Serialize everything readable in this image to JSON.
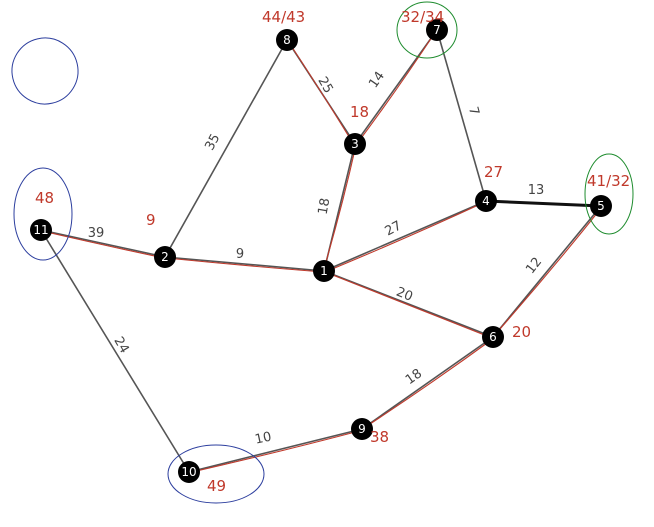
{
  "graph": {
    "nodes": [
      {
        "id": "1",
        "label": "1"
      },
      {
        "id": "2",
        "label": "2"
      },
      {
        "id": "3",
        "label": "3"
      },
      {
        "id": "4",
        "label": "4"
      },
      {
        "id": "5",
        "label": "5"
      },
      {
        "id": "6",
        "label": "6"
      },
      {
        "id": "7",
        "label": "7"
      },
      {
        "id": "8",
        "label": "8"
      },
      {
        "id": "9",
        "label": "9"
      },
      {
        "id": "10",
        "label": "10"
      },
      {
        "id": "11",
        "label": "11"
      }
    ],
    "edges": [
      {
        "from": "11",
        "to": "2",
        "weight": "39",
        "traced": true
      },
      {
        "from": "11",
        "to": "10",
        "weight": "24",
        "traced": false
      },
      {
        "from": "2",
        "to": "8",
        "weight": "35",
        "traced": false
      },
      {
        "from": "2",
        "to": "1",
        "weight": "9",
        "traced": true
      },
      {
        "from": "8",
        "to": "3",
        "weight": "25",
        "traced": true
      },
      {
        "from": "3",
        "to": "7",
        "weight": "14",
        "traced": true
      },
      {
        "from": "7",
        "to": "4",
        "weight": "7",
        "traced": false
      },
      {
        "from": "3",
        "to": "1",
        "weight": "18",
        "traced": true
      },
      {
        "from": "1",
        "to": "4",
        "weight": "27",
        "traced": true
      },
      {
        "from": "4",
        "to": "5",
        "weight": "13",
        "traced": false,
        "bold": true
      },
      {
        "from": "1",
        "to": "6",
        "weight": "20",
        "traced": true
      },
      {
        "from": "5",
        "to": "6",
        "weight": "12",
        "traced": true
      },
      {
        "from": "6",
        "to": "9",
        "weight": "18",
        "traced": true
      },
      {
        "from": "9",
        "to": "10",
        "weight": "10",
        "traced": true
      }
    ],
    "annotations": [
      {
        "node": "8",
        "text": "44/43",
        "color": "#c0392b",
        "ring": "#2c3e9e"
      },
      {
        "node": "7",
        "text": "32/34",
        "color": "#c0392b",
        "ring": "#1e8c2e"
      },
      {
        "node": "3",
        "text": "18",
        "color": "#c0392b",
        "ring": ""
      },
      {
        "node": "2",
        "text": "9",
        "color": "#c0392b",
        "ring": ""
      },
      {
        "node": "4",
        "text": "27",
        "color": "#c0392b",
        "ring": ""
      },
      {
        "node": "5",
        "text": "41/32",
        "color": "#c0392b",
        "ring": "#1e8c2e"
      },
      {
        "node": "11",
        "text": "48",
        "color": "#c0392b",
        "ring": "#2c3e9e"
      },
      {
        "node": "6",
        "text": "20",
        "color": "#c0392b",
        "ring": ""
      },
      {
        "node": "9",
        "text": "38",
        "color": "#c0392b",
        "ring": ""
      },
      {
        "node": "10",
        "text": "49",
        "color": "#c0392b",
        "ring": "#2c3e9e"
      }
    ]
  }
}
